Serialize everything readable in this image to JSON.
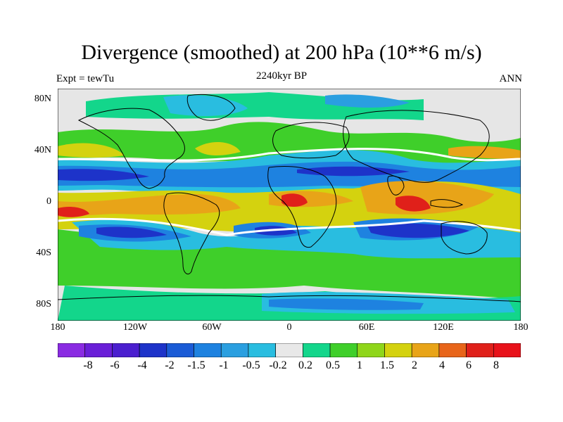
{
  "header": {
    "title": "Divergence (smoothed) at 200 hPa (10**6 m/s)",
    "left_label": "Expt = tewTu",
    "center_label": "2240kyr BP",
    "right_label": "ANN"
  },
  "axes": {
    "lat_labels": [
      "80N",
      "40N",
      "0",
      "40S",
      "80S"
    ],
    "lon_labels": [
      "180",
      "120W",
      "60W",
      "0",
      "60E",
      "120E",
      "180"
    ]
  },
  "colorbar": {
    "labels": [
      "-8",
      "-6",
      "-4",
      "-2",
      "-1.5",
      "-1",
      "-0.5",
      "-0.2",
      "0.2",
      "0.5",
      "1",
      "1.5",
      "2",
      "4",
      "6",
      "8"
    ],
    "colors": [
      "#8a2be2",
      "#6a1fd8",
      "#4b1fcf",
      "#1d33c9",
      "#1a5bd6",
      "#1e82e0",
      "#2a9fe0",
      "#29bde0",
      "#e8e8e8",
      "#13d68b",
      "#3fcf2a",
      "#8fd61a",
      "#d4d20f",
      "#e8a418",
      "#e8651a",
      "#e0201a",
      "#e8121a"
    ]
  }
}
